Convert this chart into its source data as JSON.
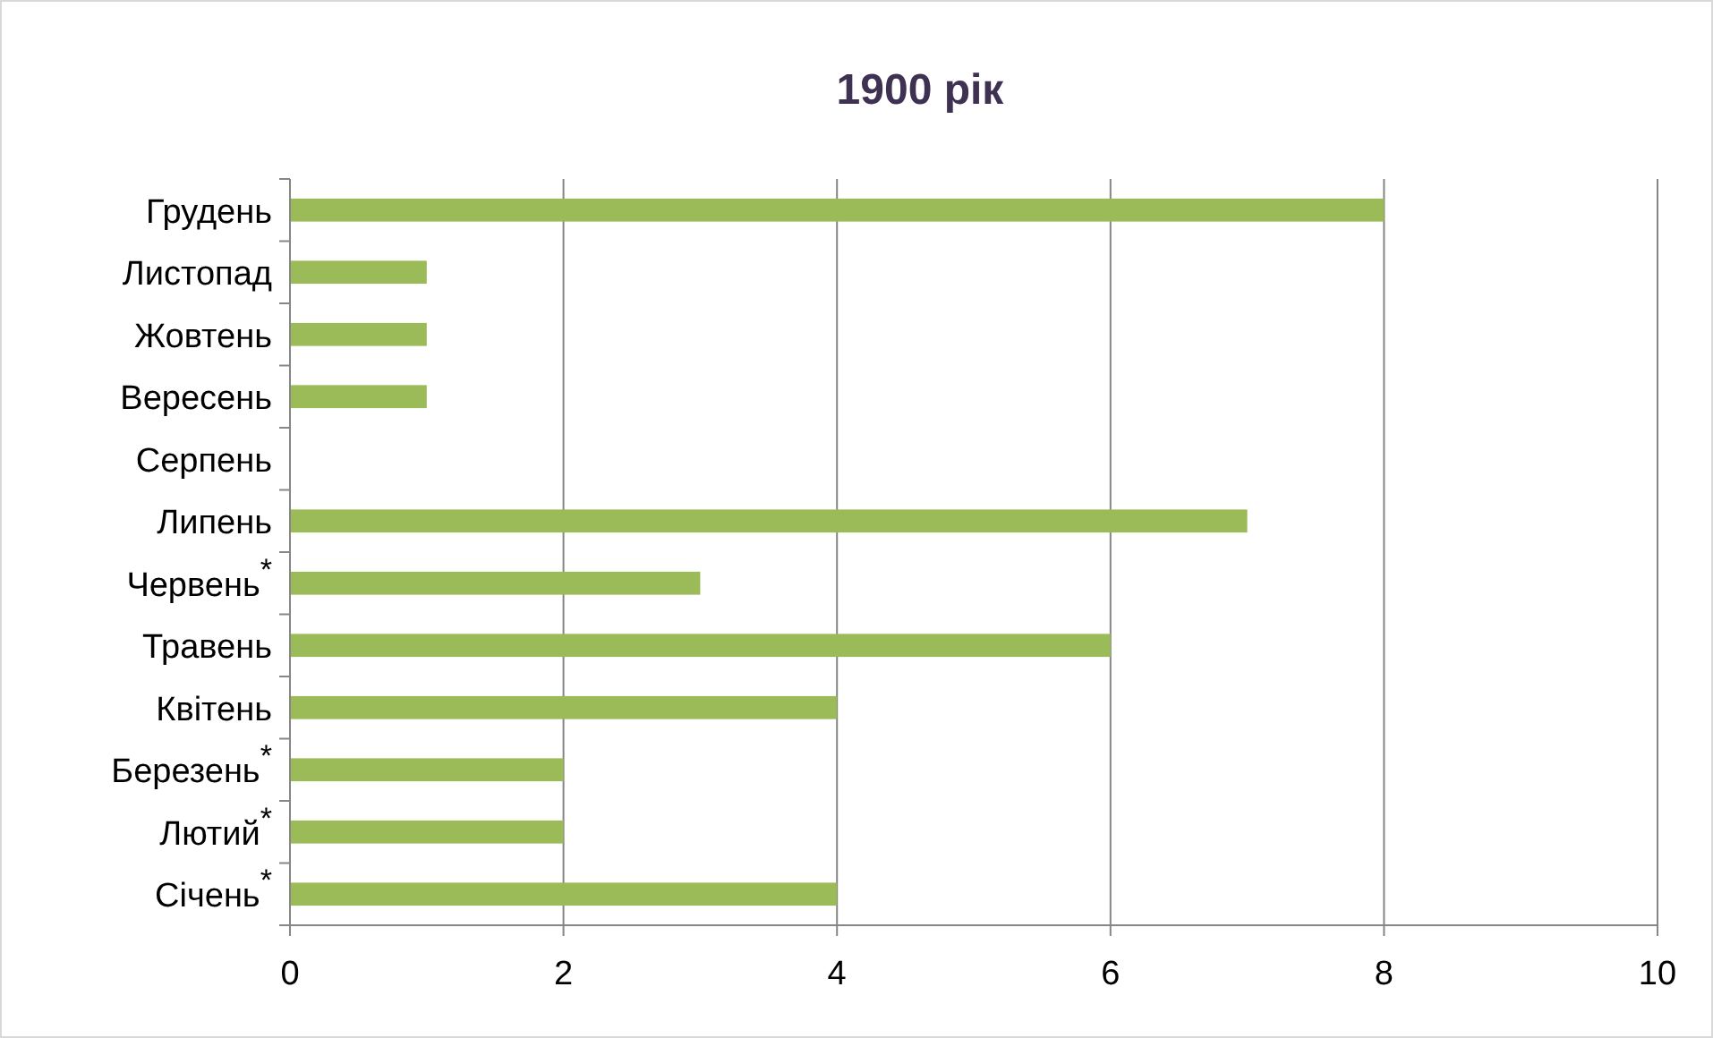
{
  "chart_data": {
    "type": "bar",
    "orientation": "horizontal",
    "title": "1900 рік",
    "categories": [
      "Грудень",
      "Листопад",
      "Жовтень",
      "Вересень",
      "Серпень",
      "Липень",
      "Червень$^{*}$",
      "Травень",
      "Квітень",
      "Березень$^{*}$",
      "Лютий$^{*}$",
      "Січень$^{*}$"
    ],
    "values": [
      8,
      1,
      1,
      1,
      0,
      7,
      3,
      6,
      4,
      2,
      2,
      4
    ],
    "color": "#9bbb59",
    "xlim": [
      0,
      10
    ],
    "xticks": [
      0,
      2,
      4,
      6,
      8,
      10
    ],
    "grid": "x"
  }
}
